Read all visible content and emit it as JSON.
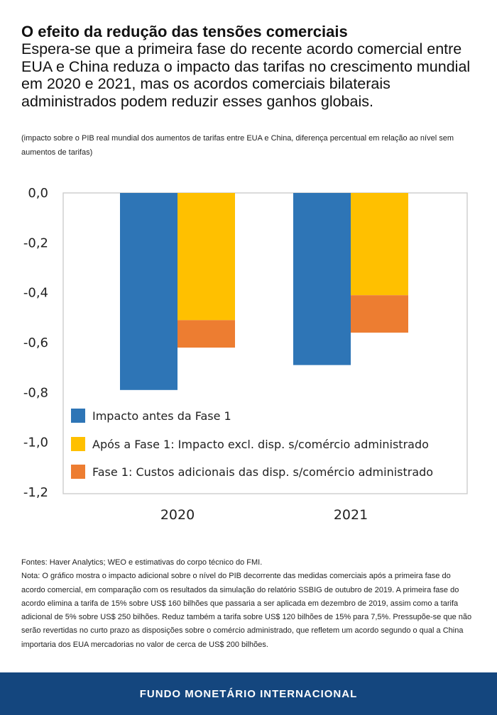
{
  "header": {
    "title": "O efeito da redução das tensões comerciais",
    "subtitle": "Espera-se que a primeira fase do recente acordo comercial entre EUA e China reduza o impacto das tarifas no crescimento mundial em 2020 e 2021, mas os acordos comerciais bilaterais administrados podem reduzir esses ganhos globais.",
    "caption": "(impacto sobre o PIB real mundial dos aumentos de tarifas entre EUA e China, diferença percentual em relação ao nível sem aumentos de tarifas)"
  },
  "chart_data": {
    "type": "bar",
    "categories": [
      "2020",
      "2021"
    ],
    "series": [
      {
        "name": "Impacto antes da Fase 1",
        "values": [
          -0.79,
          -0.69
        ],
        "color": "#2e75b6"
      },
      {
        "name": "Após a Fase 1: Impacto excl. disp. s/comércio administrado",
        "values": [
          -0.51,
          -0.41
        ],
        "color": "#ffc000",
        "stack": "fase1"
      },
      {
        "name": "Fase 1: Custos adicionais das disp. s/comércio administrado",
        "values": [
          -0.11,
          -0.15
        ],
        "color": "#ed7d31",
        "stack": "fase1"
      }
    ],
    "yticks": [
      "0,0",
      "-0,2",
      "-0,4",
      "-0,6",
      "-0,8",
      "-1,0",
      "-1,2"
    ],
    "ylim": [
      -1.2,
      0
    ],
    "grid": false,
    "legend_position": "bottom-left inside plot"
  },
  "notes": {
    "sources": "Fontes: Haver Analytics; WEO e estimativas do corpo técnico do FMI.",
    "note": "Nota: O gráfico mostra o impacto adicional sobre o nível do PIB decorrente das medidas comerciais após a primeira fase do acordo comercial, em comparação com os resultados da simulação do relatório SSBIG de outubro de 2019. A primeira fase do acordo elimina a tarifa de 15% sobre US$ 160 bilhões que passaria a ser aplicada em dezembro de 2019, assim como a tarifa adicional de 5% sobre US$ 250 bilhões. Reduz também a tarifa sobre US$ 120 bilhões de 15% para 7,5%. Pressupõe-se que não serão revertidas no curto prazo as disposições sobre o comércio administrado, que refletem um acordo segundo o qual a China importaria dos EUA mercadorias no valor de cerca de US$ 200 bilhões."
  },
  "footer": {
    "org": "FUNDO MONETÁRIO INTERNACIONAL",
    "color": "#14467e"
  }
}
